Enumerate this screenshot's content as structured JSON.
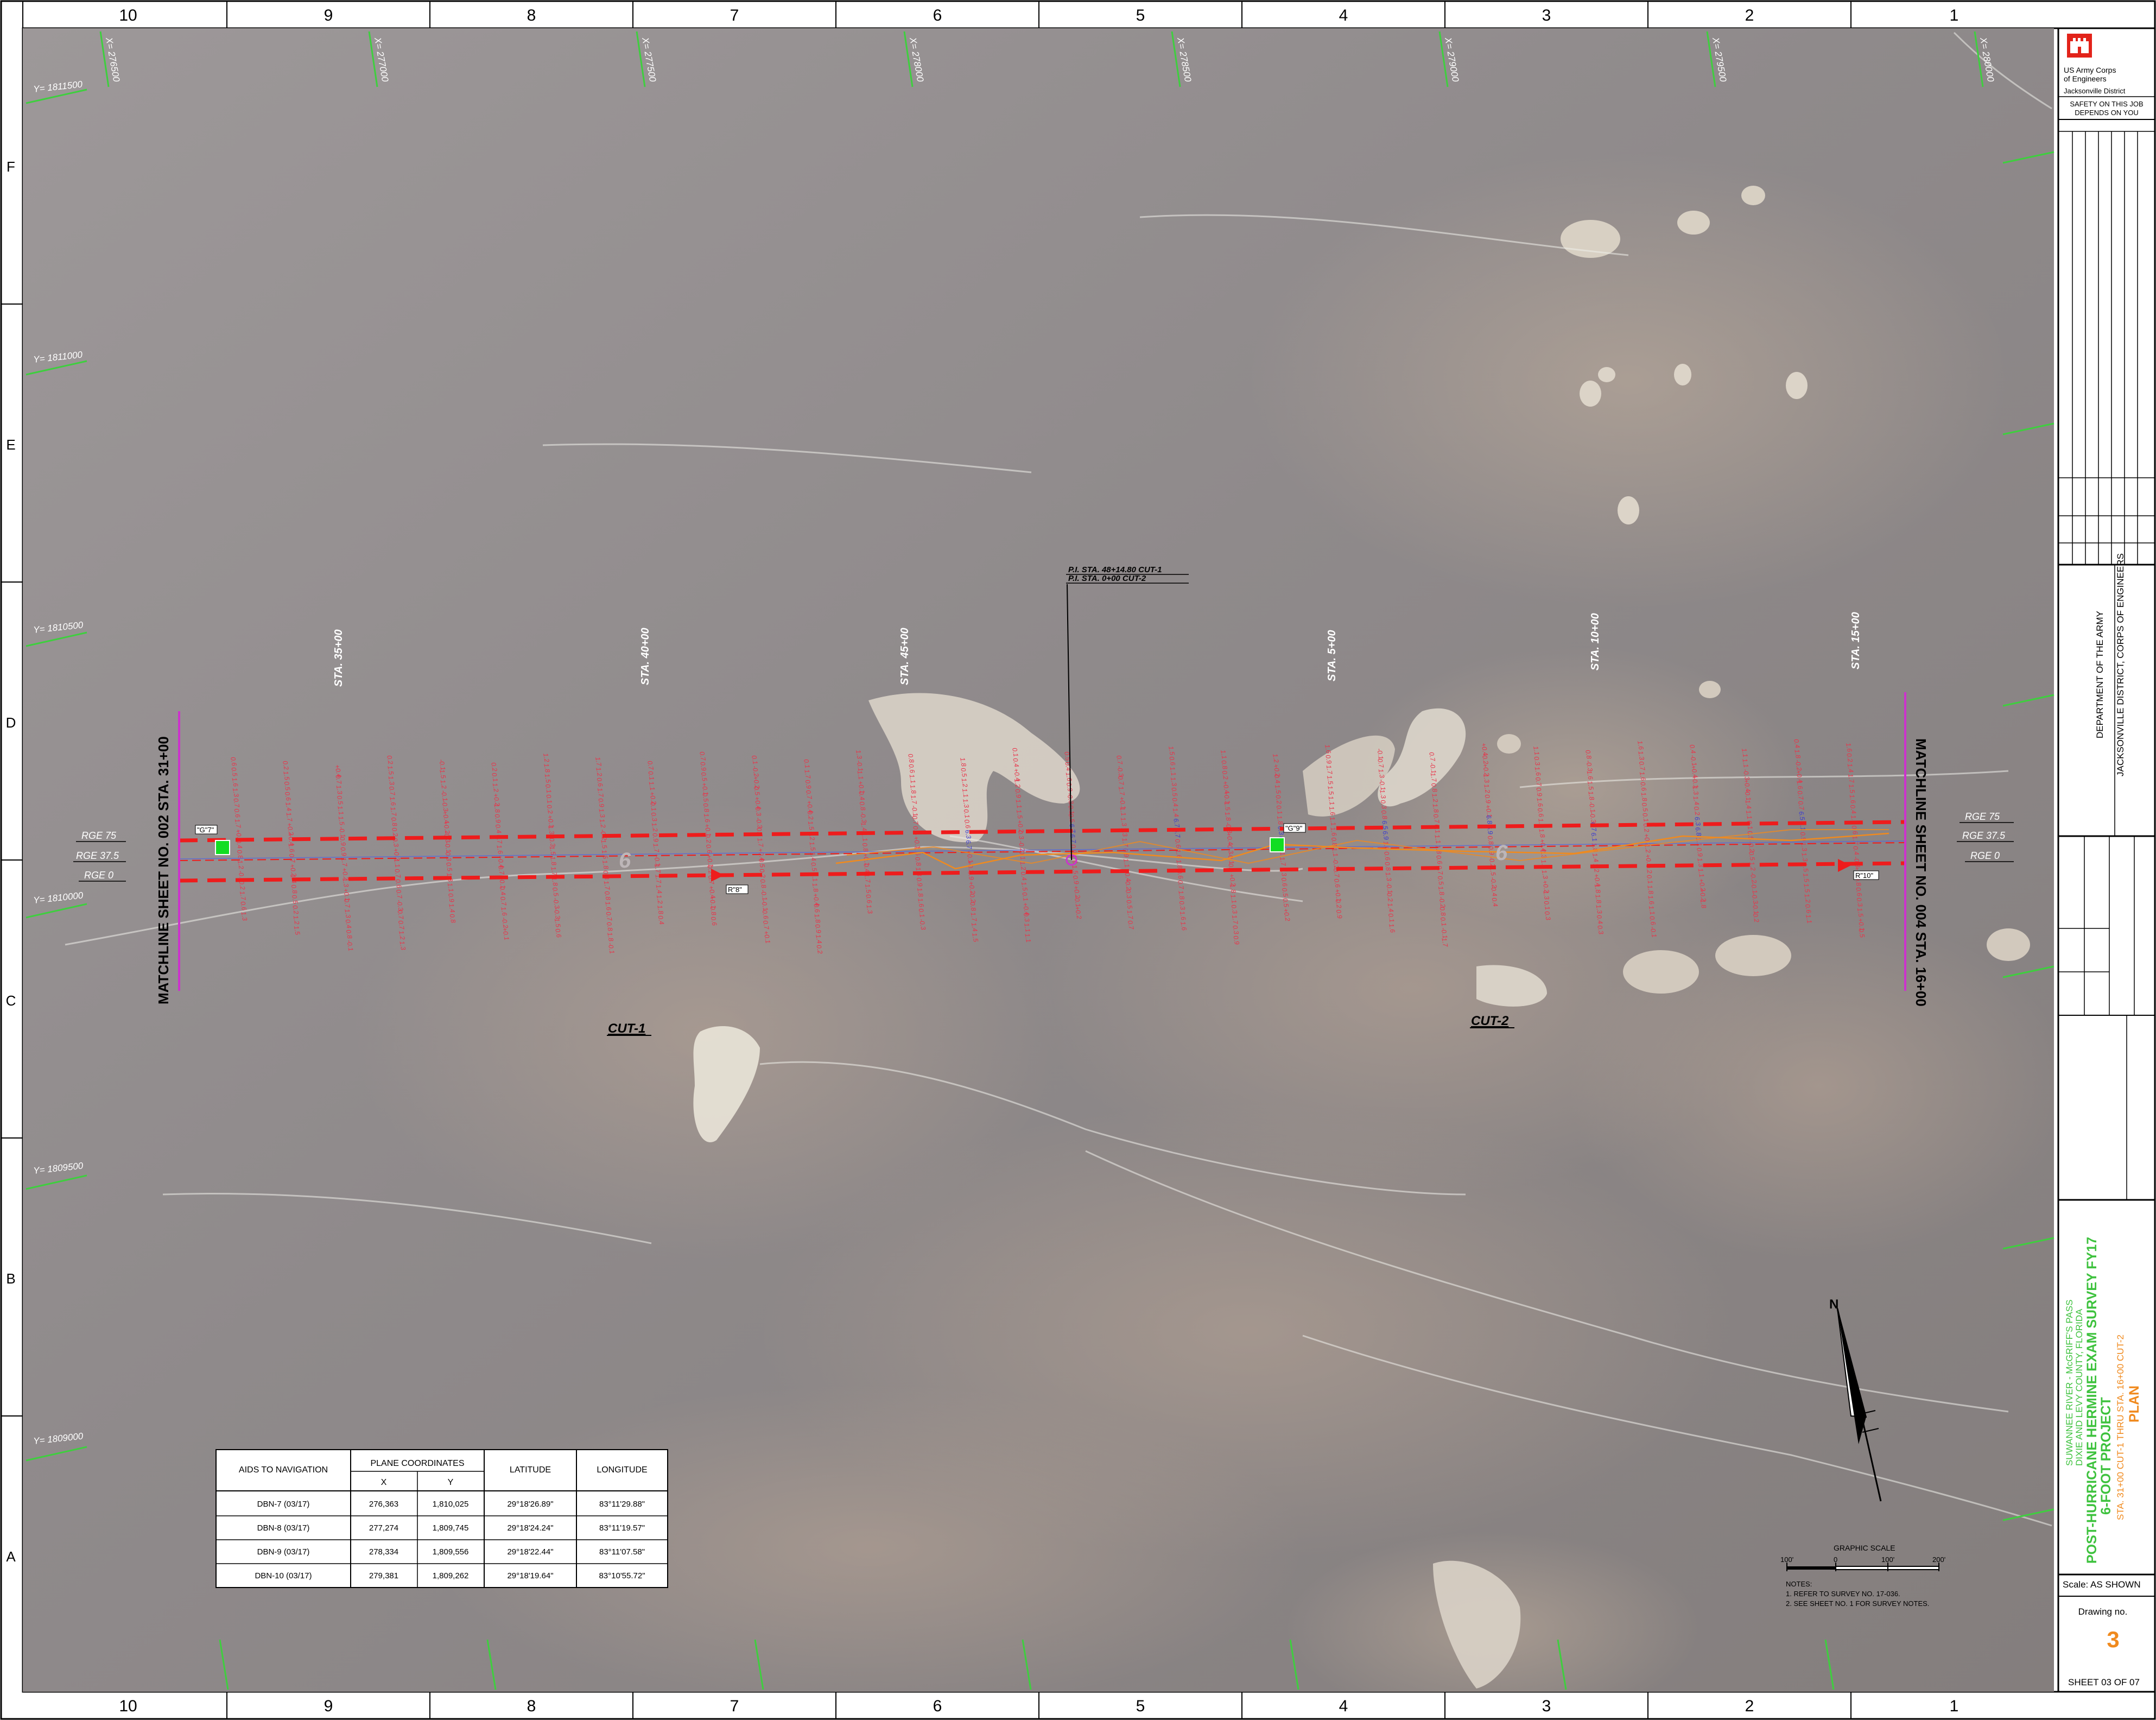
{
  "frame": {
    "columns": [
      "10",
      "9",
      "8",
      "7",
      "6",
      "5",
      "4",
      "3",
      "2",
      "1"
    ],
    "rows": [
      "F",
      "E",
      "D",
      "C",
      "B",
      "A"
    ]
  },
  "grid": {
    "x_labels": [
      "X= 276500",
      "X= 277000",
      "X= 277500",
      "X= 278000",
      "X= 278500",
      "X= 279000",
      "X= 279500",
      "X= 280000"
    ],
    "y_labels": [
      "Y= 1811500",
      "Y= 1811000",
      "Y= 1810500",
      "Y= 1810000",
      "Y= 1809500",
      "Y= 1809000"
    ]
  },
  "channel": {
    "stations": [
      "STA. 35+00",
      "STA. 40+00",
      "STA. 45+00",
      "STA. 5+00",
      "STA. 10+00",
      "STA. 15+00"
    ],
    "matchline_left": "MATCHLINE SHEET NO. 002 STA. 31+00",
    "matchline_right": "MATCHLINE SHEET NO. 004 STA. 16+00",
    "range_left": [
      "RGE 75",
      "RGE 37.5",
      "RGE 0"
    ],
    "range_right": [
      "RGE 75",
      "RGE 37.5",
      "RGE 0"
    ],
    "pi_label_1": "P.I. STA. 48+14.80 CUT-1",
    "pi_label_2": "P.I. STA. 0+00 CUT-2",
    "cut_1": "CUT-1",
    "cut_2": "CUT-2",
    "project_depth": "6",
    "aids": [
      "\"G\"7\"",
      "\"G\"9\"",
      "R\"8\"",
      "R\"10\""
    ],
    "depth_samples": [
      "1.8",
      "1.7",
      "1.6",
      "1.5",
      "1.4",
      "1.3",
      "1.2",
      "1.1",
      "0.9",
      "0.8",
      "0.7",
      "0.6",
      "0.5",
      "0.4",
      "0.3",
      "0.2",
      "0.1",
      "-0.1",
      "-0.2",
      "-0.3",
      "+0.1",
      "+0.2",
      "+0.4"
    ],
    "depth_samples_blue": [
      "6.1",
      "6.3",
      "6.5",
      "6.7",
      "6.8",
      "6.9"
    ]
  },
  "aids_table": {
    "headers": [
      "AIDS TO NAVIGATION",
      "PLANE COORDINATES",
      "LATITUDE",
      "LONGITUDE"
    ],
    "subheaders": [
      "X",
      "Y"
    ],
    "rows": [
      [
        "DBN-7 (03/17)",
        "276,363",
        "1,810,025",
        "29°18'26.89\"",
        "83°11'29.88\""
      ],
      [
        "DBN-8 (03/17)",
        "277,274",
        "1,809,745",
        "29°18'24.24\"",
        "83°11'19.57\""
      ],
      [
        "DBN-9 (03/17)",
        "278,334",
        "1,809,556",
        "29°18'22.44\"",
        "83°11'07.58\""
      ],
      [
        "DBN-10 (03/17)",
        "279,381",
        "1,809,262",
        "29°18'19.64\"",
        "83°10'55.72\""
      ]
    ]
  },
  "scale_bar": {
    "title": "GRAPHIC SCALE",
    "ticks": [
      "100'",
      "0",
      "100'",
      "200'"
    ]
  },
  "notes": {
    "title": "NOTES:",
    "items": [
      "1. REFER TO SURVEY NO. 17-036.",
      "2. SEE SHEET NO. 1 FOR SURVEY NOTES."
    ]
  },
  "north_arrow": "N",
  "title_block": {
    "agency_line1": "US Army Corps",
    "agency_line2": "of Engineers",
    "district": "Jacksonville District",
    "safety_line1": "SAFETY ON THIS JOB",
    "safety_line2": "DEPENDS ON YOU",
    "department": "DEPARTMENT OF THE ARMY",
    "corps": "JACKSONVILLE DISTRICT, CORPS OF ENGINEERS",
    "location_1": "SUWANNEE RIVER - McGRIFF'S PASS",
    "location_2": "DIXIE AND LEVY COUNTY, FLORIDA",
    "project_title_1": "POST-HURRICANE HERMINE EXAM SURVEY FY17",
    "project_title_2": "6-FOOT PROJECT",
    "sheet_range": "STA. 31+00 CUT-1 THRU STA. 16+00 CUT-2",
    "plan": "PLAN",
    "scale": "Scale:  AS SHOWN",
    "drawing_label": "Drawing no.",
    "drawing_no": "3",
    "sheet": "SHEET  03  OF  07"
  },
  "colors": {
    "channel_line": "#ee1c1c",
    "grid_tick": "#3ecf3e",
    "matchline": "#cc33cc",
    "soundings": "#e8344a",
    "soundings_blue": "#3c3cd0",
    "aid_marker": "#11dd22",
    "title_green": "#3ec23e",
    "title_orange": "#f08a1e",
    "usace_red": "#e2231a"
  }
}
